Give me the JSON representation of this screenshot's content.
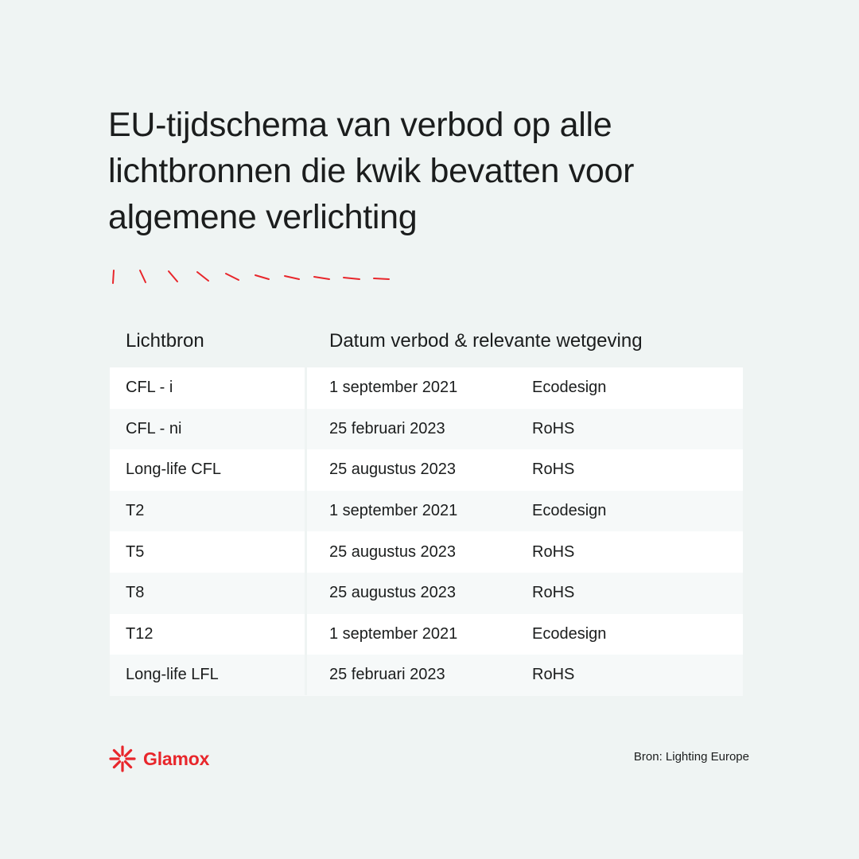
{
  "title": "EU-tijdschema van verbod op alle lichtbronnen die kwik bevatten voor algemene verlichting",
  "accent_color": "#e8262b",
  "decoration_icon": "red-dash-ticks",
  "table": {
    "headers": {
      "source": "Lichtbron",
      "date_and_law": "Datum verbod & relevante wetgeving"
    },
    "rows": [
      {
        "source": "CFL - i",
        "date": "1 september 2021",
        "law": "Ecodesign"
      },
      {
        "source": "CFL - ni",
        "date": "25 februari 2023",
        "law": "RoHS"
      },
      {
        "source": "Long-life CFL",
        "date": "25 augustus 2023",
        "law": "RoHS"
      },
      {
        "source": "T2",
        "date": "1 september 2021",
        "law": "Ecodesign"
      },
      {
        "source": "T5",
        "date": "25 augustus 2023",
        "law": "RoHS"
      },
      {
        "source": "T8",
        "date": "25 augustus 2023",
        "law": "RoHS"
      },
      {
        "source": "T12",
        "date": "1 september 2021",
        "law": "Ecodesign"
      },
      {
        "source": "Long-life LFL",
        "date": "25 februari 2023",
        "law": "RoHS"
      }
    ]
  },
  "footer": {
    "logo_icon": "glamox-starburst-icon",
    "logo_text": "Glamox",
    "source": "Bron: Lighting Europe"
  }
}
